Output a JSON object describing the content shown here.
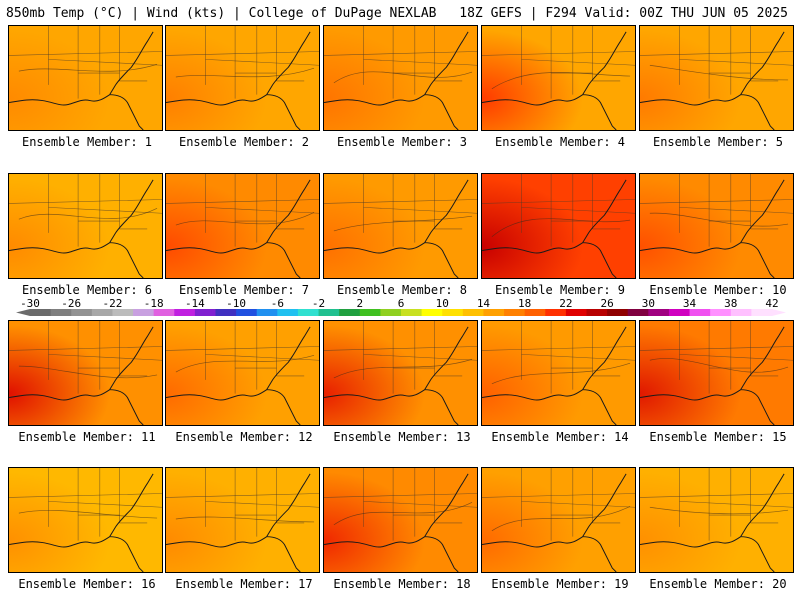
{
  "header": {
    "left_title": "850mb Temp (°C) | Wind (kts) | College of DuPage NEXLAB",
    "right_title": "18Z GEFS | F294 Valid: 00Z THU JUN 05 2025"
  },
  "panel_label_prefix": "Ensemble Member: ",
  "members": [
    {
      "id": 1,
      "label": "Ensemble Member: 1",
      "base": "#ffa600",
      "hot": "#ff8a00"
    },
    {
      "id": 2,
      "label": "Ensemble Member: 2",
      "base": "#ffa600",
      "hot": "#ff7f00"
    },
    {
      "id": 3,
      "label": "Ensemble Member: 3",
      "base": "#ff9a00",
      "hot": "#ff7400"
    },
    {
      "id": 4,
      "label": "Ensemble Member: 4",
      "base": "#ffa600",
      "hot": "#ff3a00"
    },
    {
      "id": 5,
      "label": "Ensemble Member: 5",
      "base": "#ffa600",
      "hot": "#ff7a00"
    },
    {
      "id": 6,
      "label": "Ensemble Member: 6",
      "base": "#ffb000",
      "hot": "#ff8a00"
    },
    {
      "id": 7,
      "label": "Ensemble Member: 7",
      "base": "#ff8a00",
      "hot": "#ff4a00"
    },
    {
      "id": 8,
      "label": "Ensemble Member: 8",
      "base": "#ff9a00",
      "hot": "#ff7000"
    },
    {
      "id": 9,
      "label": "Ensemble Member: 9",
      "base": "#ff4000",
      "hot": "#c80000"
    },
    {
      "id": 10,
      "label": "Ensemble Member: 10",
      "base": "#ff8a00",
      "hot": "#ff5000"
    },
    {
      "id": 11,
      "label": "Ensemble Member: 11",
      "base": "#ff9000",
      "hot": "#e01000"
    },
    {
      "id": 12,
      "label": "Ensemble Member: 12",
      "base": "#ffa000",
      "hot": "#ff6a00"
    },
    {
      "id": 13,
      "label": "Ensemble Member: 13",
      "base": "#ff9000",
      "hot": "#e82000"
    },
    {
      "id": 14,
      "label": "Ensemble Member: 14",
      "base": "#ff9a00",
      "hot": "#ff6000"
    },
    {
      "id": 15,
      "label": "Ensemble Member: 15",
      "base": "#ff7a00",
      "hot": "#e01800"
    },
    {
      "id": 16,
      "label": "Ensemble Member: 16",
      "base": "#ffb800",
      "hot": "#ff9000"
    },
    {
      "id": 17,
      "label": "Ensemble Member: 17",
      "base": "#ffb000",
      "hot": "#ff8a00"
    },
    {
      "id": 18,
      "label": "Ensemble Member: 18",
      "base": "#ff8a00",
      "hot": "#f02800"
    },
    {
      "id": 19,
      "label": "Ensemble Member: 19",
      "base": "#ffa000",
      "hot": "#ff6a00"
    },
    {
      "id": 20,
      "label": "Ensemble Member: 20",
      "base": "#ffb000",
      "hot": "#ff9000"
    }
  ],
  "color_scale": {
    "ticks": [
      "-30",
      "-26",
      "-22",
      "-18",
      "-14",
      "-10",
      "-6",
      "-2",
      "2",
      "6",
      "10",
      "14",
      "18",
      "22",
      "26",
      "30",
      "34",
      "38",
      "42"
    ],
    "colors": [
      "#6b6b6b",
      "#7f7f7f",
      "#939393",
      "#a8a8a8",
      "#bcbcbc",
      "#c8a0e0",
      "#e060e0",
      "#c020e0",
      "#8020d0",
      "#4030c0",
      "#2050e0",
      "#2090f0",
      "#20c0f0",
      "#30e0d0",
      "#20c090",
      "#20a040",
      "#40c020",
      "#90d020",
      "#c8e020",
      "#ffff00",
      "#ffe000",
      "#ffc000",
      "#ffa000",
      "#ff8000",
      "#ff6000",
      "#ff3000",
      "#e00000",
      "#b80000",
      "#900000",
      "#800040",
      "#a00080",
      "#d000c0",
      "#f050f0",
      "#ff90ff",
      "#ffc0ff",
      "#ffe0ff"
    ]
  }
}
